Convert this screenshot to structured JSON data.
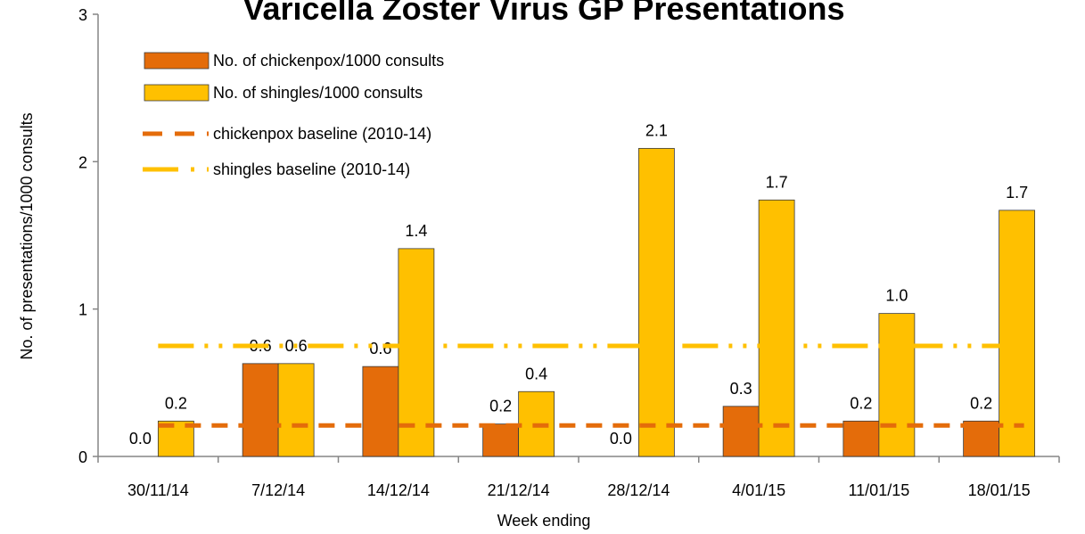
{
  "chart_data": {
    "type": "bar",
    "title": "Varicella Zoster Virus GP Presentations",
    "x_label": "Week ending",
    "y_label": "No. of presentations/1000 consults",
    "categories": [
      "30/11/14",
      "7/12/14",
      "14/12/14",
      "21/12/14",
      "28/12/14",
      "4/01/15",
      "11/01/15",
      "18/01/15"
    ],
    "series": [
      {
        "name": "No. of chickenpox/1000 consults",
        "color": "#E46C0A",
        "values": [
          0,
          0.63,
          0.61,
          0.22,
          0,
          0.34,
          0.24,
          0.24
        ],
        "value_labels": [
          "0.0",
          "0.6",
          "0.6",
          "0.2",
          "0.0",
          "0.3",
          "0.2",
          "0.2"
        ]
      },
      {
        "name": "No. of shingles/1000 consults",
        "color": "#FFC000",
        "values": [
          0.24,
          0.63,
          1.41,
          0.44,
          2.09,
          1.74,
          0.97,
          1.67
        ],
        "value_labels": [
          "0.2",
          "0.6",
          "1.4",
          "0.4",
          "2.1",
          "1.7",
          "1.0",
          "1.7"
        ]
      }
    ],
    "baselines": [
      {
        "name": "chickenpox baseline (2010-14)",
        "color": "#E46C0A",
        "value": 0.21,
        "dash": "18 12"
      },
      {
        "name": "shingles baseline (2010-14)",
        "color": "#FFC000",
        "value": 0.75,
        "dash": "40 12 4 12 4 12"
      }
    ],
    "ylim": [
      0,
      3
    ],
    "yticks": [
      0,
      1,
      2,
      3
    ],
    "grid": false
  }
}
